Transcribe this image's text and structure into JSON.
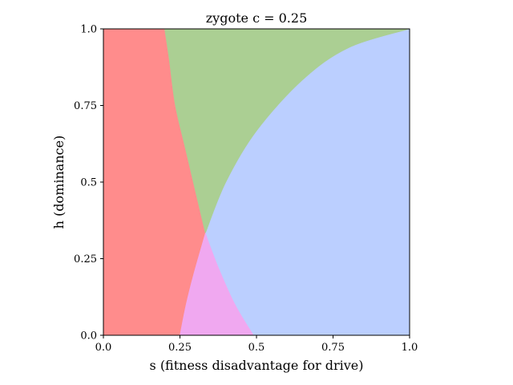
{
  "chart_data": {
    "type": "area",
    "title": "zygote c = 0.25",
    "xlabel": "s (fitness disadvantage for drive)",
    "ylabel": "h (dominance)",
    "xlim": [
      0.0,
      1.0
    ],
    "ylim": [
      0.0,
      1.0
    ],
    "xticks": [
      "0.0",
      "0.25",
      "0.5",
      "0.75",
      "1.0"
    ],
    "yticks": [
      "0.0",
      "0.25",
      "0.5",
      "0.75",
      "1.0"
    ],
    "grid": false,
    "parameters": {
      "c": 0.25
    },
    "boundaries": [
      {
        "name": "left-curve",
        "points": [
          [
            0.25,
            0.0
          ],
          [
            0.27,
            0.1
          ],
          [
            0.295,
            0.2
          ],
          [
            0.333,
            0.333
          ],
          [
            0.4,
            0.5
          ],
          [
            0.5,
            0.667
          ],
          [
            0.65,
            0.833
          ],
          [
            0.8,
            0.938
          ],
          [
            1.0,
            1.0
          ]
        ]
      },
      {
        "name": "right-curve",
        "points": [
          [
            0.2,
            1.0
          ],
          [
            0.215,
            0.9
          ],
          [
            0.235,
            0.75
          ],
          [
            0.27,
            0.6
          ],
          [
            0.333,
            0.333
          ],
          [
            0.375,
            0.222
          ],
          [
            0.43,
            0.1
          ],
          [
            0.49,
            0.0
          ]
        ]
      }
    ],
    "regions": [
      {
        "name": "red",
        "color": "#ff8c8c"
      },
      {
        "name": "green",
        "color": "#abcf93"
      },
      {
        "name": "blue",
        "color": "#bbcfff"
      },
      {
        "name": "pink",
        "color": "#f0a8f0"
      }
    ]
  }
}
